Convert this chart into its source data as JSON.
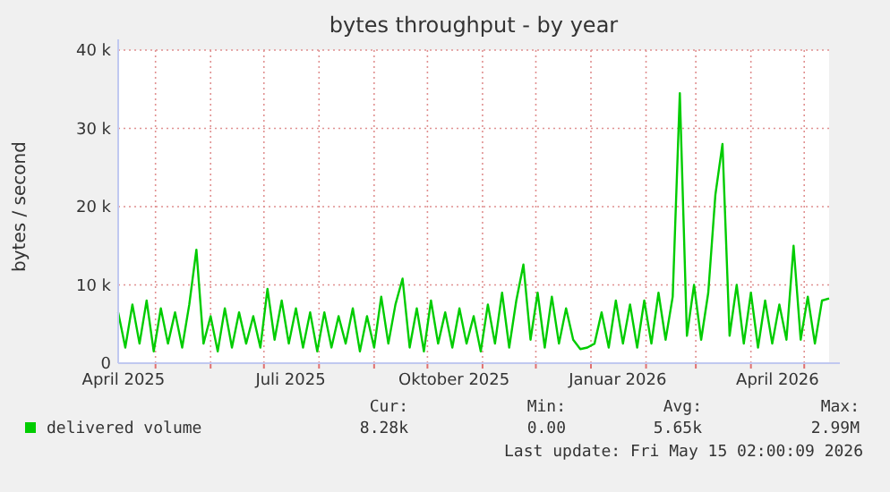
{
  "chart_data": {
    "type": "line",
    "title": "bytes throughput - by year",
    "ylabel": "bytes / second",
    "x": [
      "2025-04-10",
      "2025-04-14",
      "2025-04-18",
      "2025-04-22",
      "2025-04-26",
      "2025-04-30",
      "2025-05-04",
      "2025-05-08",
      "2025-05-12",
      "2025-05-16",
      "2025-05-20",
      "2025-05-24",
      "2025-05-28",
      "2025-06-01",
      "2025-06-05",
      "2025-06-09",
      "2025-06-13",
      "2025-06-17",
      "2025-06-21",
      "2025-06-25",
      "2025-06-29",
      "2025-07-03",
      "2025-07-07",
      "2025-07-11",
      "2025-07-15",
      "2025-07-19",
      "2025-07-23",
      "2025-07-27",
      "2025-07-31",
      "2025-08-04",
      "2025-08-08",
      "2025-08-12",
      "2025-08-16",
      "2025-08-20",
      "2025-08-24",
      "2025-08-28",
      "2025-09-01",
      "2025-09-05",
      "2025-09-09",
      "2025-09-13",
      "2025-09-17",
      "2025-09-21",
      "2025-09-25",
      "2025-09-29",
      "2025-10-03",
      "2025-10-07",
      "2025-10-11",
      "2025-10-15",
      "2025-10-19",
      "2025-10-23",
      "2025-10-27",
      "2025-10-31",
      "2025-11-04",
      "2025-11-08",
      "2025-11-12",
      "2025-11-16",
      "2025-11-20",
      "2025-11-24",
      "2025-11-28",
      "2025-12-02",
      "2025-12-06",
      "2025-12-10",
      "2025-12-14",
      "2025-12-18",
      "2025-12-22",
      "2025-12-26",
      "2025-12-30",
      "2026-01-03",
      "2026-01-07",
      "2026-01-11",
      "2026-01-15",
      "2026-01-19",
      "2026-01-23",
      "2026-01-27",
      "2026-01-31",
      "2026-02-04",
      "2026-02-08",
      "2026-02-12",
      "2026-02-16",
      "2026-02-20",
      "2026-02-24",
      "2026-02-28",
      "2026-03-04",
      "2026-03-08",
      "2026-03-12",
      "2026-03-16",
      "2026-03-20",
      "2026-03-24",
      "2026-03-28",
      "2026-04-01",
      "2026-04-05",
      "2026-04-09",
      "2026-04-13",
      "2026-04-17",
      "2026-04-21",
      "2026-04-25",
      "2026-04-29",
      "2026-05-03",
      "2026-05-07",
      "2026-05-11",
      "2026-05-15"
    ],
    "series": [
      {
        "name": "delivered volume",
        "color": "#00cc00",
        "values": [
          6500,
          2000,
          7500,
          2500,
          8000,
          1500,
          7000,
          2500,
          6500,
          2000,
          7500,
          14500,
          2500,
          6000,
          1500,
          7000,
          2000,
          6500,
          2500,
          6000,
          2000,
          9500,
          3000,
          8000,
          2500,
          7000,
          2000,
          6500,
          1500,
          6500,
          2000,
          6000,
          2500,
          7000,
          1500,
          6000,
          2000,
          8500,
          2500,
          7500,
          10800,
          2000,
          7000,
          1500,
          8000,
          2500,
          6500,
          2000,
          7000,
          2500,
          6000,
          1500,
          7500,
          2500,
          9000,
          2000,
          8000,
          12600,
          3000,
          9000,
          2000,
          8500,
          2500,
          7000,
          3000,
          1800,
          2000,
          2500,
          6500,
          2000,
          8000,
          2500,
          7500,
          2000,
          8000,
          2500,
          9000,
          3000,
          8500,
          34500,
          3500,
          10000,
          3000,
          9000,
          21500,
          28000,
          3500,
          10000,
          2500,
          9000,
          2000,
          8000,
          2500,
          7500,
          3000,
          15000,
          3000,
          8500,
          2500,
          8000,
          8280
        ]
      }
    ],
    "xlim": [
      "2025-04-10",
      "2026-05-15"
    ],
    "xticks": [
      {
        "value": "2025-05-01",
        "label": null
      },
      {
        "value": "2025-06-01",
        "label": null
      },
      {
        "value": "2025-07-01",
        "label": null
      },
      {
        "value": "2025-08-01",
        "label": null
      },
      {
        "value": "2025-09-01",
        "label": null
      },
      {
        "value": "2025-10-01",
        "label": null
      },
      {
        "value": "2025-11-01",
        "label": null
      },
      {
        "value": "2025-12-01",
        "label": null
      },
      {
        "value": "2026-01-01",
        "label": null
      },
      {
        "value": "2026-02-01",
        "label": null
      },
      {
        "value": "2026-03-01",
        "label": null
      },
      {
        "value": "2026-04-01",
        "label": null
      },
      {
        "value": "2026-05-01",
        "label": null
      },
      {
        "value": "2025-04-13",
        "label": "April 2025"
      },
      {
        "value": "2025-07-16",
        "label": "Juli 2025"
      },
      {
        "value": "2025-10-16",
        "label": "Oktober 2025"
      },
      {
        "value": "2026-01-16",
        "label": "Januar 2026"
      },
      {
        "value": "2026-04-16",
        "label": "April 2026"
      }
    ],
    "ylim": [
      0,
      40000
    ],
    "yticks": [
      0,
      {
        "value": 10000,
        "label": "10 k"
      },
      {
        "value": 20000,
        "label": "20 k"
      },
      {
        "value": 30000,
        "label": "30 k"
      },
      {
        "value": 40000,
        "label": "40 k"
      }
    ],
    "grid": true,
    "legend": "bottom",
    "marker": "none",
    "line_style": "solid",
    "annotations": [
      "Cur:",
      "8.28k",
      "Min:",
      "0.00",
      "Avg:",
      "5.65k",
      "Max:",
      "2.99M",
      "Last update: Fri May 15 02:00:09 2026"
    ]
  }
}
